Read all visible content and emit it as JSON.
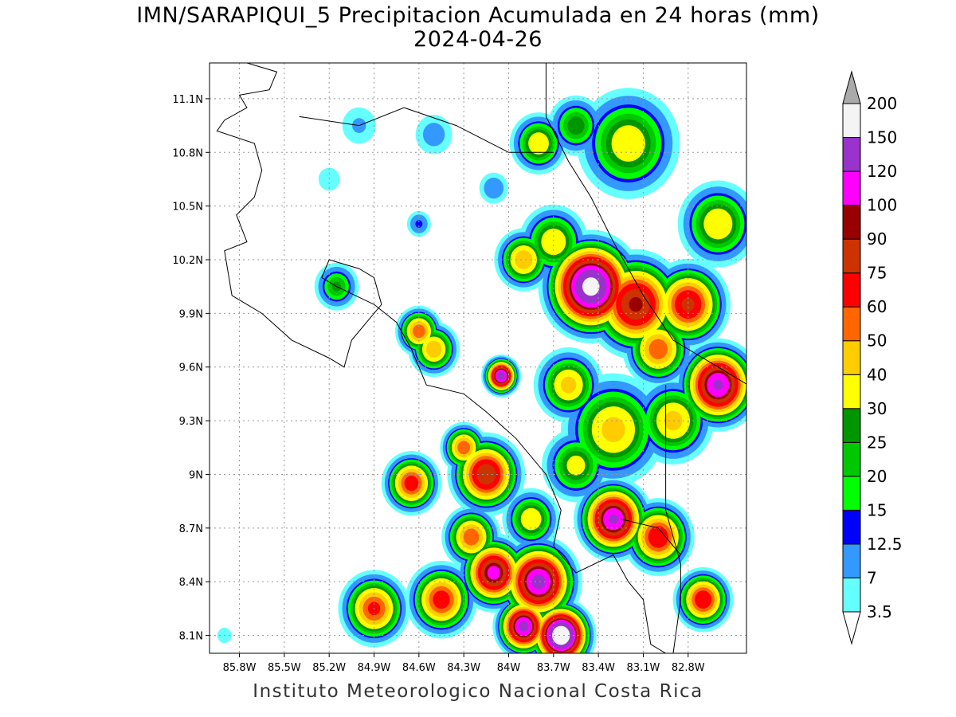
{
  "title_line1": "IMN/SARAPIQUI_5 Precipitacion Acumulada en 24 horas (mm)",
  "title_line2": "2024-04-26",
  "footer": "Instituto Meteorologico Nacional Costa Rica",
  "map": {
    "lon_range": [
      -86.0,
      -82.41
    ],
    "lat_range": [
      8.0,
      11.3
    ],
    "lat_ticks": [
      {
        "v": 11.1,
        "label": "11.1N"
      },
      {
        "v": 10.8,
        "label": "10.8N"
      },
      {
        "v": 10.5,
        "label": "10.5N"
      },
      {
        "v": 10.2,
        "label": "10.2N"
      },
      {
        "v": 9.9,
        "label": "9.9N"
      },
      {
        "v": 9.6,
        "label": "9.6N"
      },
      {
        "v": 9.3,
        "label": "9.3N"
      },
      {
        "v": 9.0,
        "label": "9N"
      },
      {
        "v": 8.7,
        "label": "8.7N"
      },
      {
        "v": 8.4,
        "label": "8.4N"
      },
      {
        "v": 8.1,
        "label": "8.1N"
      }
    ],
    "lon_ticks": [
      {
        "v": -85.8,
        "label": "85.8W"
      },
      {
        "v": -85.5,
        "label": "85.5W"
      },
      {
        "v": -85.2,
        "label": "85.2W"
      },
      {
        "v": -84.9,
        "label": "84.9W"
      },
      {
        "v": -84.6,
        "label": "84.6W"
      },
      {
        "v": -84.3,
        "label": "84.3W"
      },
      {
        "v": -84.0,
        "label": "84W"
      },
      {
        "v": -83.7,
        "label": "83.7W"
      },
      {
        "v": -83.4,
        "label": "83.4W"
      },
      {
        "v": -83.1,
        "label": "83.1W"
      },
      {
        "v": -82.8,
        "label": "82.8W"
      }
    ],
    "precip_cells": [
      [
        -83.45,
        10.05,
        0.42,
        165
      ],
      [
        -83.15,
        9.95,
        0.42,
        95
      ],
      [
        -82.8,
        9.95,
        0.35,
        80
      ],
      [
        -82.6,
        9.5,
        0.35,
        125
      ],
      [
        -83.3,
        8.75,
        0.32,
        125
      ],
      [
        -83.0,
        8.65,
        0.3,
        75
      ],
      [
        -83.8,
        8.4,
        0.35,
        130
      ],
      [
        -83.65,
        8.1,
        0.28,
        190
      ],
      [
        -83.9,
        8.15,
        0.25,
        130
      ],
      [
        -84.1,
        8.45,
        0.3,
        110
      ],
      [
        -84.15,
        9.0,
        0.32,
        90
      ],
      [
        -84.3,
        9.15,
        0.2,
        60
      ],
      [
        -84.45,
        8.3,
        0.3,
        70
      ],
      [
        -84.9,
        8.25,
        0.3,
        65
      ],
      [
        -84.65,
        8.95,
        0.25,
        70
      ],
      [
        -84.05,
        9.55,
        0.16,
        135
      ],
      [
        -84.5,
        9.7,
        0.22,
        50
      ],
      [
        -84.6,
        9.8,
        0.2,
        60
      ],
      [
        -83.8,
        10.85,
        0.25,
        40
      ],
      [
        -83.2,
        10.85,
        0.45,
        38
      ],
      [
        -83.55,
        10.95,
        0.25,
        30
      ],
      [
        -85.15,
        10.05,
        0.2,
        27
      ],
      [
        -83.3,
        9.25,
        0.45,
        45
      ],
      [
        -82.9,
        9.3,
        0.35,
        45
      ],
      [
        -83.6,
        9.5,
        0.3,
        45
      ],
      [
        -82.7,
        8.3,
        0.25,
        75
      ],
      [
        -83.9,
        10.2,
        0.25,
        50
      ],
      [
        -83.7,
        10.3,
        0.3,
        40
      ],
      [
        -82.6,
        10.4,
        0.35,
        40
      ],
      [
        -84.1,
        10.6,
        0.15,
        12
      ],
      [
        -84.5,
        10.9,
        0.2,
        10
      ],
      [
        -85.0,
        10.95,
        0.2,
        8
      ],
      [
        -85.2,
        10.65,
        0.15,
        6
      ],
      [
        -85.9,
        8.1,
        0.1,
        6
      ],
      [
        -84.6,
        10.4,
        0.12,
        14
      ],
      [
        -83.0,
        9.7,
        0.3,
        60
      ],
      [
        -83.85,
        8.75,
        0.25,
        40
      ],
      [
        -83.55,
        9.05,
        0.3,
        35
      ],
      [
        -84.25,
        8.65,
        0.25,
        60
      ]
    ],
    "coastlines": [
      [
        [
          -85.75,
          11.3
        ],
        [
          -85.55,
          11.25
        ],
        [
          -85.6,
          11.15
        ],
        [
          -85.8,
          11.12
        ],
        [
          -85.75,
          11.05
        ],
        [
          -85.9,
          10.98
        ],
        [
          -85.95,
          10.92
        ],
        [
          -85.7,
          10.85
        ],
        [
          -85.65,
          10.7
        ],
        [
          -85.7,
          10.55
        ],
        [
          -85.82,
          10.45
        ],
        [
          -85.75,
          10.3
        ],
        [
          -85.9,
          10.25
        ],
        [
          -85.85,
          10.0
        ],
        [
          -85.65,
          9.9
        ],
        [
          -85.45,
          9.75
        ],
        [
          -85.2,
          9.65
        ],
        [
          -85.1,
          9.6
        ],
        [
          -85.05,
          9.75
        ],
        [
          -84.95,
          9.85
        ],
        [
          -84.85,
          9.95
        ],
        [
          -84.9,
          10.1
        ],
        [
          -85.0,
          10.15
        ],
        [
          -85.2,
          10.2
        ],
        [
          -85.25,
          10.1
        ],
        [
          -85.15,
          10.05
        ],
        [
          -84.9,
          9.95
        ],
        [
          -84.75,
          9.85
        ],
        [
          -84.65,
          9.7
        ],
        [
          -84.6,
          9.6
        ],
        [
          -84.55,
          9.5
        ],
        [
          -84.3,
          9.45
        ],
        [
          -84.15,
          9.35
        ],
        [
          -83.95,
          9.2
        ],
        [
          -83.75,
          9.0
        ],
        [
          -83.65,
          8.8
        ],
        [
          -83.7,
          8.6
        ],
        [
          -83.55,
          8.45
        ],
        [
          -83.3,
          8.55
        ],
        [
          -83.2,
          8.4
        ],
        [
          -83.1,
          8.3
        ],
        [
          -83.05,
          8.05
        ],
        [
          -82.95,
          8.0
        ]
      ],
      [
        [
          -83.75,
          11.3
        ],
        [
          -83.75,
          11.0
        ],
        [
          -83.6,
          10.75
        ],
        [
          -83.45,
          10.55
        ],
        [
          -83.3,
          10.3
        ],
        [
          -83.1,
          10.0
        ],
        [
          -82.9,
          9.75
        ],
        [
          -82.6,
          9.6
        ],
        [
          -82.4,
          9.5
        ]
      ],
      [
        [
          -85.4,
          11.0
        ],
        [
          -85.0,
          10.95
        ],
        [
          -84.7,
          11.05
        ],
        [
          -84.35,
          10.95
        ],
        [
          -84.0,
          10.8
        ],
        [
          -83.7,
          10.8
        ]
      ],
      [
        [
          -82.95,
          9.5
        ],
        [
          -82.95,
          9.0
        ],
        [
          -82.95,
          8.8
        ],
        [
          -82.85,
          8.5
        ],
        [
          -82.85,
          8.3
        ],
        [
          -82.9,
          8.0
        ]
      ],
      [
        [
          -83.25,
          8.75
        ],
        [
          -83.0,
          8.7
        ],
        [
          -82.85,
          8.55
        ]
      ]
    ]
  },
  "colorbar": {
    "levels": [
      "3.5",
      "7",
      "12.5",
      "15",
      "20",
      "25",
      "30",
      "40",
      "50",
      "60",
      "75",
      "90",
      "100",
      "120",
      "150",
      "200"
    ],
    "colors": [
      "#66ffff",
      "#3399ff",
      "#0000ff",
      "#00ff00",
      "#00c800",
      "#009600",
      "#ffff00",
      "#ffcc00",
      "#ff6600",
      "#ff0000",
      "#cc3300",
      "#990000",
      "#ff00ff",
      "#9933cc",
      "#f4f4f4"
    ],
    "over_color": "#aaaaaa",
    "under_color": "#ffffff"
  }
}
